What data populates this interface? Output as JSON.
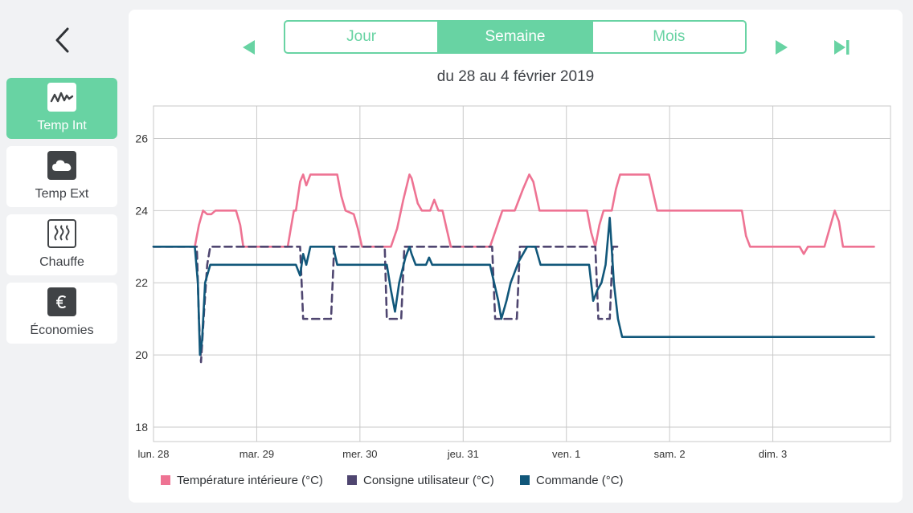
{
  "sidebar": {
    "back_icon": "chevron-left-icon",
    "items": [
      {
        "label": "Temp Int",
        "icon": "temperature-wave-icon",
        "active": true
      },
      {
        "label": "Temp Ext",
        "icon": "cloud-icon",
        "active": false
      },
      {
        "label": "Chauffe",
        "icon": "heating-icon",
        "active": false
      },
      {
        "label": "Économies",
        "icon": "euro-icon",
        "active": false
      }
    ]
  },
  "header": {
    "tabs": [
      {
        "label": "Jour",
        "active": false
      },
      {
        "label": "Semaine",
        "active": true
      },
      {
        "label": "Mois",
        "active": false
      }
    ],
    "period_label": "du 28 au 4 février 2019"
  },
  "colors": {
    "accent": "#68d3a3",
    "temperature": "#ee7393",
    "setpoint": "#4f4670",
    "command": "#11577a"
  },
  "chart_data": {
    "type": "line",
    "title": "",
    "xlabel": "",
    "ylabel": "",
    "ylim": [
      17.6,
      26.9
    ],
    "xlim": [
      0,
      7.14
    ],
    "yticks": [
      18,
      20,
      22,
      24,
      26
    ],
    "categories": [
      "lun. 28",
      "mar. 29",
      "mer. 30",
      "jeu. 31",
      "ven. 1",
      "sam. 2",
      "dim. 3"
    ],
    "grid": true,
    "legend_position": "bottom",
    "series": [
      {
        "name": "Température intérieure (°C)",
        "style": "solid",
        "points": [
          [
            0,
            23
          ],
          [
            0.4,
            23
          ],
          [
            0.44,
            23.6
          ],
          [
            0.48,
            24
          ],
          [
            0.52,
            23.9
          ],
          [
            0.56,
            23.9
          ],
          [
            0.6,
            24
          ],
          [
            0.8,
            24
          ],
          [
            0.84,
            23.6
          ],
          [
            0.87,
            23
          ],
          [
            1.3,
            23
          ],
          [
            1.33,
            23.5
          ],
          [
            1.36,
            24
          ],
          [
            1.38,
            24
          ],
          [
            1.42,
            24.8
          ],
          [
            1.45,
            25
          ],
          [
            1.48,
            24.7
          ],
          [
            1.52,
            25
          ],
          [
            1.78,
            25
          ],
          [
            1.82,
            24.4
          ],
          [
            1.86,
            24
          ],
          [
            1.94,
            23.9
          ],
          [
            1.98,
            23.5
          ],
          [
            2.02,
            23
          ],
          [
            2.3,
            23
          ],
          [
            2.36,
            23.5
          ],
          [
            2.42,
            24.3
          ],
          [
            2.48,
            25
          ],
          [
            2.5,
            24.9
          ],
          [
            2.56,
            24.2
          ],
          [
            2.6,
            24
          ],
          [
            2.68,
            24
          ],
          [
            2.72,
            24.3
          ],
          [
            2.76,
            24
          ],
          [
            2.8,
            24
          ],
          [
            2.84,
            23.5
          ],
          [
            2.88,
            23
          ],
          [
            3.26,
            23
          ],
          [
            3.32,
            23.5
          ],
          [
            3.38,
            24
          ],
          [
            3.5,
            24
          ],
          [
            3.58,
            24.6
          ],
          [
            3.64,
            25
          ],
          [
            3.68,
            24.8
          ],
          [
            3.74,
            24
          ],
          [
            4.2,
            24
          ],
          [
            4.24,
            23.4
          ],
          [
            4.28,
            23
          ],
          [
            4.32,
            23.6
          ],
          [
            4.36,
            24
          ],
          [
            4.44,
            24
          ],
          [
            4.48,
            24.6
          ],
          [
            4.52,
            25
          ],
          [
            4.8,
            25
          ],
          [
            4.84,
            24.5
          ],
          [
            4.88,
            24
          ],
          [
            5.7,
            24
          ],
          [
            5.74,
            23.3
          ],
          [
            5.78,
            23
          ],
          [
            6.26,
            23
          ],
          [
            6.3,
            22.8
          ],
          [
            6.34,
            23
          ],
          [
            6.5,
            23
          ],
          [
            6.56,
            23.6
          ],
          [
            6.6,
            24
          ],
          [
            6.64,
            23.7
          ],
          [
            6.68,
            23
          ],
          [
            6.98,
            23
          ]
        ]
      },
      {
        "name": "Consigne utilisateur (°C)",
        "style": "dashed",
        "points": [
          [
            0,
            23
          ],
          [
            0.42,
            23
          ],
          [
            0.44,
            21
          ],
          [
            0.46,
            19.8
          ],
          [
            0.49,
            21.2
          ],
          [
            0.52,
            22.5
          ],
          [
            0.55,
            23
          ],
          [
            1.42,
            23
          ],
          [
            1.45,
            21
          ],
          [
            1.72,
            21
          ],
          [
            1.75,
            23
          ],
          [
            2.24,
            23
          ],
          [
            2.26,
            21
          ],
          [
            2.4,
            21
          ],
          [
            2.43,
            23
          ],
          [
            3.28,
            23
          ],
          [
            3.31,
            21
          ],
          [
            3.52,
            21
          ],
          [
            3.55,
            23
          ],
          [
            4.28,
            23
          ],
          [
            4.31,
            21
          ],
          [
            4.42,
            21
          ],
          [
            4.45,
            23
          ],
          [
            4.5,
            23
          ]
        ]
      },
      {
        "name": "Commande (°C)",
        "style": "solid",
        "points": [
          [
            0,
            23
          ],
          [
            0.4,
            23
          ],
          [
            0.43,
            22
          ],
          [
            0.45,
            20
          ],
          [
            0.47,
            20.4
          ],
          [
            0.5,
            22
          ],
          [
            0.55,
            22.5
          ],
          [
            1.38,
            22.5
          ],
          [
            1.42,
            22.2
          ],
          [
            1.45,
            22.8
          ],
          [
            1.48,
            22.5
          ],
          [
            1.52,
            23
          ],
          [
            1.74,
            23
          ],
          [
            1.78,
            22.5
          ],
          [
            2.26,
            22.5
          ],
          [
            2.3,
            21.8
          ],
          [
            2.34,
            21.2
          ],
          [
            2.38,
            22
          ],
          [
            2.44,
            22.7
          ],
          [
            2.48,
            23
          ],
          [
            2.5,
            22.8
          ],
          [
            2.54,
            22.5
          ],
          [
            2.64,
            22.5
          ],
          [
            2.67,
            22.7
          ],
          [
            2.7,
            22.5
          ],
          [
            3.26,
            22.5
          ],
          [
            3.3,
            22
          ],
          [
            3.34,
            21.5
          ],
          [
            3.37,
            21
          ],
          [
            3.42,
            21.5
          ],
          [
            3.46,
            22
          ],
          [
            3.5,
            22.3
          ],
          [
            3.54,
            22.6
          ],
          [
            3.58,
            22.8
          ],
          [
            3.62,
            23
          ],
          [
            3.7,
            23
          ],
          [
            3.75,
            22.5
          ],
          [
            4.22,
            22.5
          ],
          [
            4.26,
            21.5
          ],
          [
            4.3,
            21.8
          ],
          [
            4.34,
            22
          ],
          [
            4.38,
            22.5
          ],
          [
            4.42,
            23.8
          ],
          [
            4.46,
            22
          ],
          [
            4.5,
            21
          ],
          [
            4.54,
            20.5
          ],
          [
            6.98,
            20.5
          ]
        ]
      }
    ]
  }
}
